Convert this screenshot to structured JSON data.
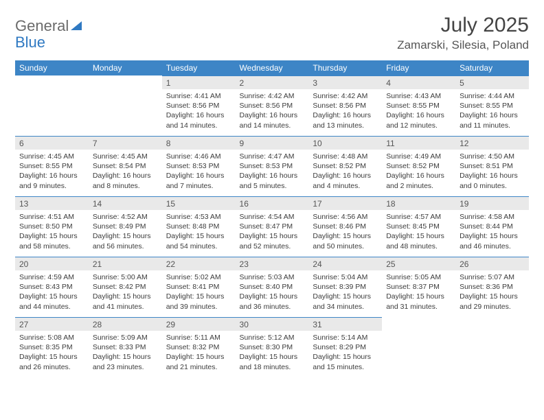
{
  "brand": {
    "part1": "General",
    "part2": "Blue"
  },
  "title": {
    "month": "July 2025",
    "location": "Zamarski, Silesia, Poland"
  },
  "colors": {
    "header_bg": "#3d85c6",
    "header_fg": "#ffffff",
    "daynum_bg": "#e9e9e9",
    "rule": "#3d85c6",
    "text": "#333333",
    "logo_gray": "#6a6a6a",
    "logo_blue": "#2f79c2"
  },
  "weekdays": [
    "Sunday",
    "Monday",
    "Tuesday",
    "Wednesday",
    "Thursday",
    "Friday",
    "Saturday"
  ],
  "weeks": [
    [
      null,
      null,
      {
        "n": "1",
        "sr": "4:41 AM",
        "ss": "8:56 PM",
        "dl": "16 hours and 14 minutes."
      },
      {
        "n": "2",
        "sr": "4:42 AM",
        "ss": "8:56 PM",
        "dl": "16 hours and 14 minutes."
      },
      {
        "n": "3",
        "sr": "4:42 AM",
        "ss": "8:56 PM",
        "dl": "16 hours and 13 minutes."
      },
      {
        "n": "4",
        "sr": "4:43 AM",
        "ss": "8:55 PM",
        "dl": "16 hours and 12 minutes."
      },
      {
        "n": "5",
        "sr": "4:44 AM",
        "ss": "8:55 PM",
        "dl": "16 hours and 11 minutes."
      }
    ],
    [
      {
        "n": "6",
        "sr": "4:45 AM",
        "ss": "8:55 PM",
        "dl": "16 hours and 9 minutes."
      },
      {
        "n": "7",
        "sr": "4:45 AM",
        "ss": "8:54 PM",
        "dl": "16 hours and 8 minutes."
      },
      {
        "n": "8",
        "sr": "4:46 AM",
        "ss": "8:53 PM",
        "dl": "16 hours and 7 minutes."
      },
      {
        "n": "9",
        "sr": "4:47 AM",
        "ss": "8:53 PM",
        "dl": "16 hours and 5 minutes."
      },
      {
        "n": "10",
        "sr": "4:48 AM",
        "ss": "8:52 PM",
        "dl": "16 hours and 4 minutes."
      },
      {
        "n": "11",
        "sr": "4:49 AM",
        "ss": "8:52 PM",
        "dl": "16 hours and 2 minutes."
      },
      {
        "n": "12",
        "sr": "4:50 AM",
        "ss": "8:51 PM",
        "dl": "16 hours and 0 minutes."
      }
    ],
    [
      {
        "n": "13",
        "sr": "4:51 AM",
        "ss": "8:50 PM",
        "dl": "15 hours and 58 minutes."
      },
      {
        "n": "14",
        "sr": "4:52 AM",
        "ss": "8:49 PM",
        "dl": "15 hours and 56 minutes."
      },
      {
        "n": "15",
        "sr": "4:53 AM",
        "ss": "8:48 PM",
        "dl": "15 hours and 54 minutes."
      },
      {
        "n": "16",
        "sr": "4:54 AM",
        "ss": "8:47 PM",
        "dl": "15 hours and 52 minutes."
      },
      {
        "n": "17",
        "sr": "4:56 AM",
        "ss": "8:46 PM",
        "dl": "15 hours and 50 minutes."
      },
      {
        "n": "18",
        "sr": "4:57 AM",
        "ss": "8:45 PM",
        "dl": "15 hours and 48 minutes."
      },
      {
        "n": "19",
        "sr": "4:58 AM",
        "ss": "8:44 PM",
        "dl": "15 hours and 46 minutes."
      }
    ],
    [
      {
        "n": "20",
        "sr": "4:59 AM",
        "ss": "8:43 PM",
        "dl": "15 hours and 44 minutes."
      },
      {
        "n": "21",
        "sr": "5:00 AM",
        "ss": "8:42 PM",
        "dl": "15 hours and 41 minutes."
      },
      {
        "n": "22",
        "sr": "5:02 AM",
        "ss": "8:41 PM",
        "dl": "15 hours and 39 minutes."
      },
      {
        "n": "23",
        "sr": "5:03 AM",
        "ss": "8:40 PM",
        "dl": "15 hours and 36 minutes."
      },
      {
        "n": "24",
        "sr": "5:04 AM",
        "ss": "8:39 PM",
        "dl": "15 hours and 34 minutes."
      },
      {
        "n": "25",
        "sr": "5:05 AM",
        "ss": "8:37 PM",
        "dl": "15 hours and 31 minutes."
      },
      {
        "n": "26",
        "sr": "5:07 AM",
        "ss": "8:36 PM",
        "dl": "15 hours and 29 minutes."
      }
    ],
    [
      {
        "n": "27",
        "sr": "5:08 AM",
        "ss": "8:35 PM",
        "dl": "15 hours and 26 minutes."
      },
      {
        "n": "28",
        "sr": "5:09 AM",
        "ss": "8:33 PM",
        "dl": "15 hours and 23 minutes."
      },
      {
        "n": "29",
        "sr": "5:11 AM",
        "ss": "8:32 PM",
        "dl": "15 hours and 21 minutes."
      },
      {
        "n": "30",
        "sr": "5:12 AM",
        "ss": "8:30 PM",
        "dl": "15 hours and 18 minutes."
      },
      {
        "n": "31",
        "sr": "5:14 AM",
        "ss": "8:29 PM",
        "dl": "15 hours and 15 minutes."
      },
      null,
      null
    ]
  ],
  "labels": {
    "sunrise": "Sunrise:",
    "sunset": "Sunset:",
    "daylight": "Daylight:"
  }
}
